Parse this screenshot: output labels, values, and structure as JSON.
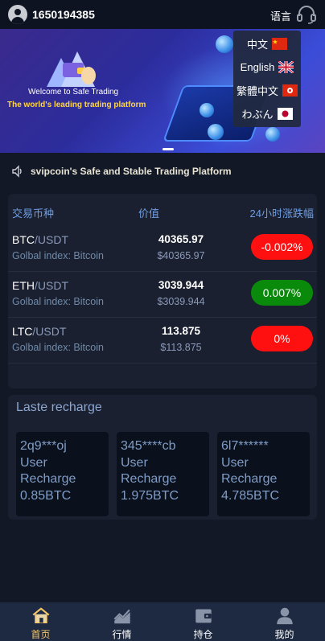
{
  "header": {
    "username": "1650194385",
    "language_label": "语言"
  },
  "banner": {
    "welcome_text": "Welcome to Safe Trading",
    "tagline": "The world's leading trading platform"
  },
  "language_menu": {
    "items": [
      {
        "label": "中文",
        "flag": "china-flag"
      },
      {
        "label": "English",
        "flag": "uk-flag"
      },
      {
        "label": "繁體中文",
        "flag": "hong-kong-flag"
      },
      {
        "label": "わぶん",
        "flag": "japan-flag"
      }
    ]
  },
  "notice": {
    "text": "svipcoin's Safe and Stable Trading Platform"
  },
  "market": {
    "headers": {
      "pair": "交易币种",
      "value": "价值",
      "change": "24小时涨跌幅"
    },
    "rows": [
      {
        "base": "BTC",
        "quote": "/USDT",
        "index": "Golbal index: Bitcoin",
        "price": "40365.97",
        "usd": "$40365.97",
        "change": "-0.002%",
        "color": "#ff1010"
      },
      {
        "base": "ETH",
        "quote": "/USDT",
        "index": "Golbal index: Bitcoin",
        "price": "3039.944",
        "usd": "$3039.944",
        "change": "0.007%",
        "color": "#0a8a0a"
      },
      {
        "base": "LTC",
        "quote": "/USDT",
        "index": "Golbal index: Bitcoin",
        "price": "113.875",
        "usd": "$113.875",
        "change": "0%",
        "color": "#ff1010"
      }
    ]
  },
  "recharge": {
    "title": "Laste recharge",
    "items": [
      {
        "user": "2q9***oj",
        "line1": "User",
        "line2": "Recharge",
        "amount": "0.85BTC"
      },
      {
        "user": "345****cb",
        "line1": "User",
        "line2": "Recharge",
        "amount": "1.975BTC"
      },
      {
        "user": "6l7******",
        "line1": "User",
        "line2": "Recharge",
        "amount": "4.785BTC"
      }
    ]
  },
  "bottom_nav": {
    "items": [
      {
        "label": "首页",
        "icon": "home-icon",
        "active": true
      },
      {
        "label": "行情",
        "icon": "chart-icon",
        "active": false
      },
      {
        "label": "持仓",
        "icon": "wallet-icon",
        "active": false
      },
      {
        "label": "我的",
        "icon": "user-icon",
        "active": false
      }
    ]
  },
  "colors": {
    "background": "#121826",
    "card": "#1a2030",
    "accent": "#f5c56a",
    "down": "#ff1010",
    "up": "#0a8a0a"
  }
}
